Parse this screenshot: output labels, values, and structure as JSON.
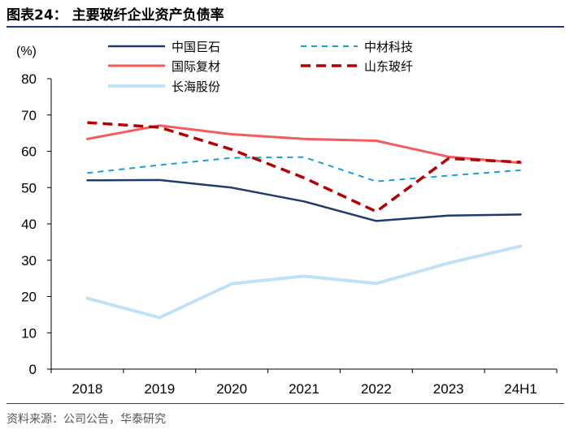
{
  "figure": {
    "title": "图表24：  主要玻纤企业资产负债率",
    "source": "资料来源：公司公告，华泰研究"
  },
  "chart_data": {
    "type": "line",
    "title": "主要玻纤企业资产负债率",
    "ylabel": "(%)",
    "xlabel": "",
    "categories": [
      "2018",
      "2019",
      "2020",
      "2021",
      "2022",
      "2023",
      "24H1"
    ],
    "ylim": [
      0,
      80
    ],
    "yticks": [
      0,
      10,
      20,
      30,
      40,
      50,
      60,
      70,
      80
    ],
    "legend_position": "top",
    "grid": false,
    "series": [
      {
        "name": "中国巨石",
        "color": "#1f3b6e",
        "style": "solid",
        "values": [
          52.0,
          52.1,
          50.0,
          46.2,
          40.8,
          42.3,
          42.6
        ]
      },
      {
        "name": "中材科技",
        "color": "#1aa0d8",
        "style": "dashed",
        "values": [
          54.0,
          56.2,
          58.2,
          58.4,
          51.7,
          53.3,
          54.8
        ]
      },
      {
        "name": "国际复材",
        "color": "#f25c5c",
        "style": "solid",
        "values": [
          63.4,
          67.1,
          64.7,
          63.4,
          62.9,
          58.5,
          56.8
        ]
      },
      {
        "name": "山东玻纤",
        "color": "#b30000",
        "style": "dashed",
        "values": [
          67.9,
          66.6,
          60.5,
          52.7,
          43.4,
          58.0,
          57.0
        ]
      },
      {
        "name": "长海股份",
        "color": "#bfe3f5",
        "style": "solid",
        "values": [
          19.5,
          14.2,
          23.5,
          25.6,
          23.6,
          29.2,
          33.9
        ]
      }
    ]
  }
}
